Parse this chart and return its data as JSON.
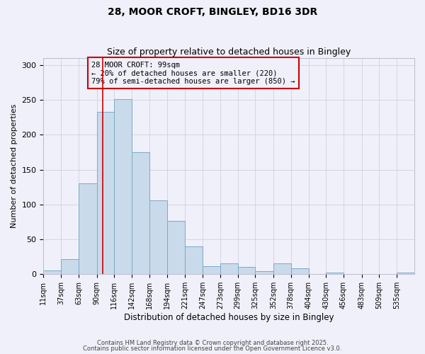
{
  "title": "28, MOOR CROFT, BINGLEY, BD16 3DR",
  "subtitle": "Size of property relative to detached houses in Bingley",
  "xlabel": "Distribution of detached houses by size in Bingley",
  "ylabel": "Number of detached properties",
  "bar_labels": [
    "11sqm",
    "37sqm",
    "63sqm",
    "90sqm",
    "116sqm",
    "142sqm",
    "168sqm",
    "194sqm",
    "221sqm",
    "247sqm",
    "273sqm",
    "299sqm",
    "325sqm",
    "352sqm",
    "378sqm",
    "404sqm",
    "430sqm",
    "456sqm",
    "483sqm",
    "509sqm",
    "535sqm"
  ],
  "bar_values": [
    5,
    22,
    130,
    233,
    251,
    175,
    106,
    77,
    40,
    12,
    16,
    10,
    4,
    16,
    8,
    0,
    2,
    0,
    0,
    0,
    2
  ],
  "bar_edges": [
    11,
    37,
    63,
    90,
    116,
    142,
    168,
    194,
    221,
    247,
    273,
    299,
    325,
    352,
    378,
    404,
    430,
    456,
    483,
    509,
    535,
    561
  ],
  "bar_color": "#c9daea",
  "bar_edgecolor": "#7aaac8",
  "vline_x": 99,
  "vline_color": "#cc0000",
  "ylim": [
    0,
    310
  ],
  "yticks": [
    0,
    50,
    100,
    150,
    200,
    250,
    300
  ],
  "annotation_title": "28 MOOR CROFT: 99sqm",
  "annotation_line1": "← 20% of detached houses are smaller (220)",
  "annotation_line2": "79% of semi-detached houses are larger (850) →",
  "footer1": "Contains HM Land Registry data © Crown copyright and database right 2025.",
  "footer2": "Contains public sector information licensed under the Open Government Licence v3.0.",
  "background_color": "#f0f0fa",
  "grid_color": "#d0d0e0"
}
